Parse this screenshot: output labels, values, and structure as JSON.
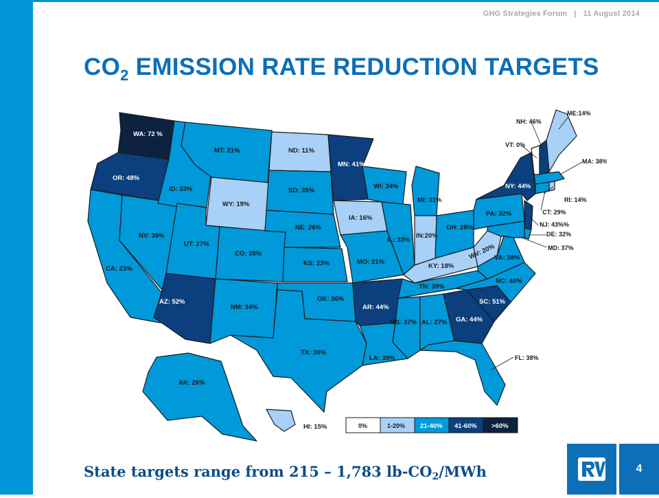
{
  "header": {
    "event": "GHG Strategies Forum",
    "separator": "|",
    "date": "11 August 2014"
  },
  "title": {
    "prefix": "CO",
    "subscript": "2",
    "suffix": " EMISSION RATE REDUCTION TARGETS"
  },
  "map": {
    "states": [
      {
        "id": "WA",
        "label": "WA: 72 %",
        "bin": ">60%"
      },
      {
        "id": "OR",
        "label": "OR: 48%",
        "bin": "41-60%"
      },
      {
        "id": "CA",
        "label": "CA: 23%",
        "bin": "21-40%"
      },
      {
        "id": "NV",
        "label": "NV: 35%",
        "bin": "21-40%"
      },
      {
        "id": "ID",
        "label": "ID: 33%",
        "bin": "21-40%"
      },
      {
        "id": "MT",
        "label": "MT: 21%",
        "bin": "21-40%"
      },
      {
        "id": "WY",
        "label": "WY: 19%",
        "bin": "1-20%"
      },
      {
        "id": "UT",
        "label": "UT: 27%",
        "bin": "21-40%"
      },
      {
        "id": "AZ",
        "label": "AZ: 52%",
        "bin": "41-60%"
      },
      {
        "id": "CO",
        "label": "CO: 35%",
        "bin": "21-40%"
      },
      {
        "id": "NM",
        "label": "NM: 34%",
        "bin": "21-40%"
      },
      {
        "id": "ND",
        "label": "ND: 11%",
        "bin": "1-20%"
      },
      {
        "id": "SD",
        "label": "SD: 35%",
        "bin": "21-40%"
      },
      {
        "id": "NE",
        "label": "NE: 26%",
        "bin": "21-40%"
      },
      {
        "id": "KS",
        "label": "KS: 23%",
        "bin": "21-40%"
      },
      {
        "id": "OK",
        "label": "OK: 36%",
        "bin": "21-40%"
      },
      {
        "id": "TX",
        "label": "TX: 38%",
        "bin": "21-40%"
      },
      {
        "id": "MN",
        "label": "MN: 41%",
        "bin": "41-60%"
      },
      {
        "id": "IA",
        "label": "IA: 16%",
        "bin": "1-20%"
      },
      {
        "id": "MO",
        "label": "MO: 21%",
        "bin": "21-40%"
      },
      {
        "id": "AR",
        "label": "AR: 44%",
        "bin": "41-60%"
      },
      {
        "id": "LA",
        "label": "LA: 39%",
        "bin": "21-40%"
      },
      {
        "id": "WI",
        "label": "WI: 34%",
        "bin": "21-40%"
      },
      {
        "id": "IL",
        "label": "IL: 33%",
        "bin": "21-40%"
      },
      {
        "id": "MI",
        "label": "MI: 31%",
        "bin": "21-40%"
      },
      {
        "id": "IN",
        "label": "IN:20%",
        "bin": "1-20%"
      },
      {
        "id": "OH",
        "label": "OH: 28%",
        "bin": "21-40%"
      },
      {
        "id": "KY",
        "label": "KY: 18%",
        "bin": "1-20%"
      },
      {
        "id": "TN",
        "label": "TN: 39%",
        "bin": "21-40%"
      },
      {
        "id": "MS",
        "label": "MS: 37%",
        "bin": "21-40%"
      },
      {
        "id": "AL",
        "label": "AL: 27%",
        "bin": "21-40%"
      },
      {
        "id": "GA",
        "label": "GA: 44%",
        "bin": "41-60%"
      },
      {
        "id": "FL",
        "label": "FL: 38%",
        "bin": "21-40%"
      },
      {
        "id": "SC",
        "label": "SC: 51%",
        "bin": "41-60%"
      },
      {
        "id": "NC",
        "label": "NC: 40%",
        "bin": "21-40%"
      },
      {
        "id": "VA",
        "label": "VA: 38%",
        "bin": "21-40%"
      },
      {
        "id": "WV",
        "label": "WV: 20%",
        "bin": "1-20%"
      },
      {
        "id": "PA",
        "label": "PA: 32%",
        "bin": "21-40%"
      },
      {
        "id": "NY",
        "label": "NY: 44%",
        "bin": "41-60%"
      },
      {
        "id": "AK",
        "label": "AK: 26%",
        "bin": "21-40%"
      },
      {
        "id": "HI",
        "label": "HI: 15%",
        "bin": "1-20%"
      },
      {
        "id": "ME",
        "label": "ME:14%",
        "bin": "1-20%"
      },
      {
        "id": "NH",
        "label": "NH: 46%",
        "bin": "41-60%"
      },
      {
        "id": "VT",
        "label": "VT: 0%",
        "bin": "0%"
      },
      {
        "id": "MA",
        "label": "MA: 38%",
        "bin": "21-40%"
      },
      {
        "id": "RI",
        "label": "RI: 14%",
        "bin": "1-20%"
      },
      {
        "id": "CT",
        "label": "CT: 29%",
        "bin": "21-40%"
      },
      {
        "id": "NJ",
        "label": "NJ: 43%%",
        "bin": "41-60%"
      },
      {
        "id": "DE",
        "label": "DE: 32%",
        "bin": "21-40%"
      },
      {
        "id": "MD",
        "label": "MD: 37%",
        "bin": "21-40%"
      }
    ],
    "legend": [
      {
        "label": "0%",
        "color": "#ffffff"
      },
      {
        "label": "1-20%",
        "color": "#a9d1f7"
      },
      {
        "label": "21-40%",
        "color": "#0099da"
      },
      {
        "label": "41-60%",
        "color": "#0b3f7e"
      },
      {
        "label": ">60%",
        "color": "#0d2240"
      }
    ]
  },
  "footer": {
    "text_prefix": "State targets range from 215 – 1,783 lb-CO",
    "text_subscript": "2",
    "text_suffix": "/MWh",
    "page_number": "4"
  }
}
